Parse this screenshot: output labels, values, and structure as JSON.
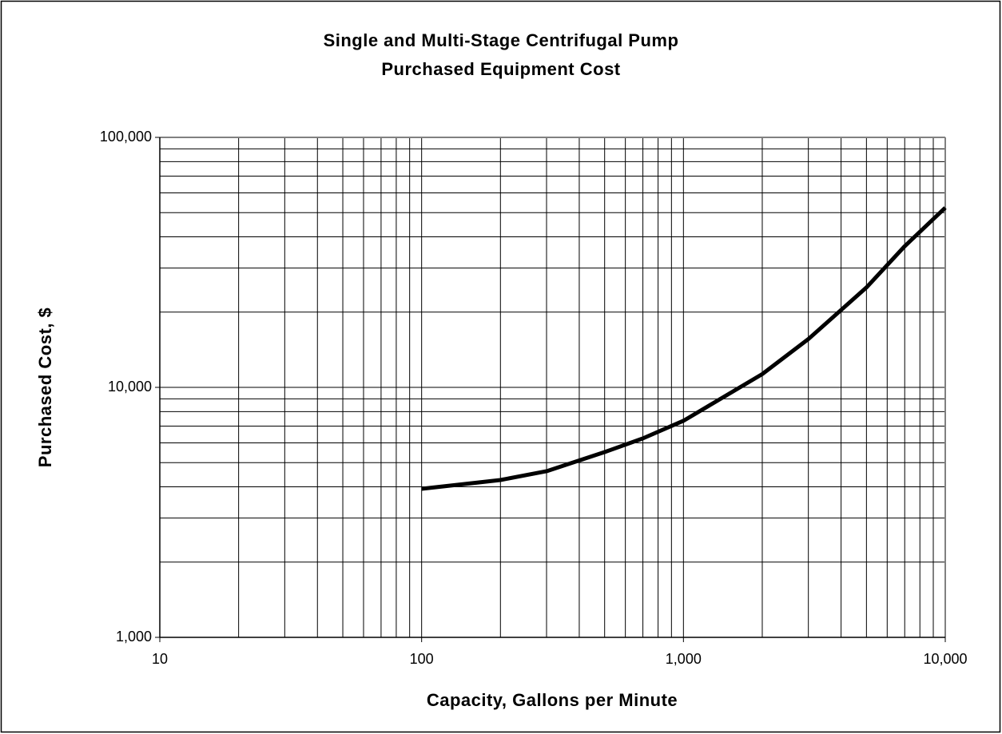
{
  "chart_data": {
    "type": "line",
    "title": [
      "Single and Multi-Stage Centrifugal Pump",
      "Purchased Equipment Cost"
    ],
    "x_label": "Capacity, Gallons per Minute",
    "y_label": "Purchased Cost, $",
    "x": [
      100,
      200,
      300,
      500,
      700,
      1000,
      2000,
      3000,
      5000,
      7000,
      10000
    ],
    "series": [
      {
        "color": "#000000",
        "values": [
          3930,
          4260,
          4620,
          5510,
          6250,
          7350,
          11300,
          15600,
          25100,
          36700,
          52300
        ]
      }
    ],
    "xlog": true,
    "ylog": true,
    "xlim": [
      10,
      10000
    ],
    "ylim": [
      1000,
      100000
    ],
    "xticks": [
      10,
      100,
      {
        "value": 1000,
        "label": "1,000"
      },
      {
        "value": 10000,
        "label": "10,000"
      }
    ],
    "yticks": [
      {
        "value": 1000,
        "label": "1,000"
      },
      {
        "value": 10000,
        "label": "10,000"
      },
      {
        "value": 100000,
        "label": "100,000"
      }
    ],
    "xminorticks": [
      20,
      30,
      40,
      50,
      60,
      70,
      80,
      90,
      200,
      300,
      400,
      500,
      600,
      700,
      800,
      900,
      2000,
      3000,
      4000,
      5000,
      6000,
      7000,
      8000,
      9000
    ],
    "yminorticks": [
      2000,
      3000,
      4000,
      5000,
      6000,
      7000,
      8000,
      9000,
      20000,
      30000,
      40000,
      50000,
      60000,
      70000,
      80000,
      90000
    ],
    "grid": true
  }
}
